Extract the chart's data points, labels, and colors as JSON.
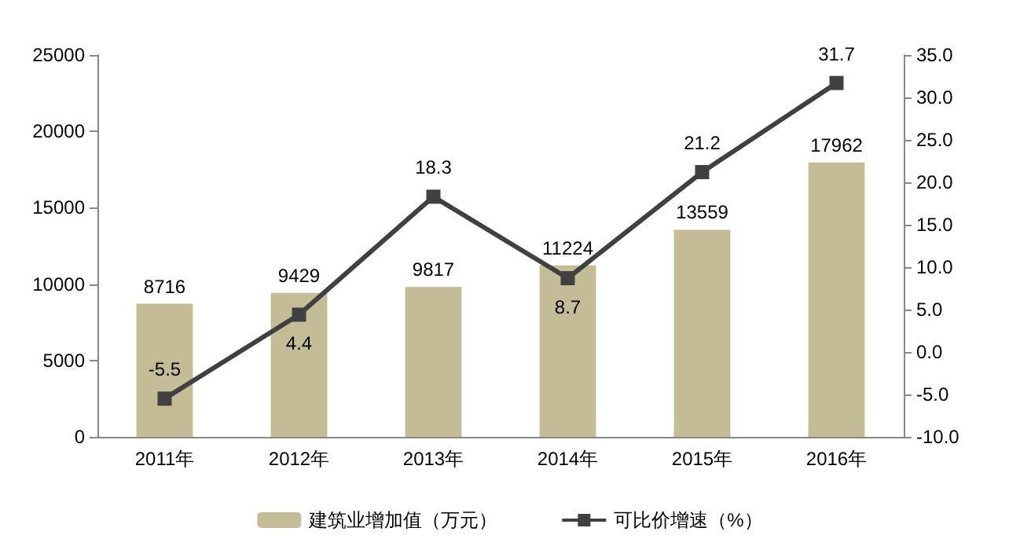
{
  "chart_data": {
    "type": "bar",
    "categories": [
      "2011年",
      "2012年",
      "2013年",
      "2014年",
      "2015年",
      "2016年"
    ],
    "series": [
      {
        "name": "建筑业增加值（万元）",
        "color": "#c4bc96",
        "values": [
          8716,
          9429,
          9817,
          11224,
          13559,
          17962
        ]
      },
      {
        "name": "可比价增速（%）",
        "type": "line",
        "axis": "y2",
        "color": "#404040",
        "values": [
          -5.5,
          4.4,
          18.3,
          8.7,
          21.2,
          31.7
        ]
      }
    ],
    "ylim": [
      0,
      25000
    ],
    "yticks": [
      0,
      5000,
      10000,
      15000,
      20000,
      25000
    ],
    "y2lim": [
      -10,
      35
    ],
    "y2ticks": [
      {
        "value": -10,
        "label": "-10.0"
      },
      {
        "value": -5,
        "label": "-5.0"
      },
      {
        "value": 0,
        "label": "0.0"
      },
      {
        "value": 5,
        "label": "5.0"
      },
      {
        "value": 10,
        "label": "10.0"
      },
      {
        "value": 15,
        "label": "15.0"
      },
      {
        "value": 20,
        "label": "20.0"
      },
      {
        "value": 25,
        "label": "25.0"
      },
      {
        "value": 30,
        "label": "30.0"
      },
      {
        "value": 35,
        "label": "35.0"
      }
    ],
    "data_labels": true,
    "legend": "bottom",
    "marker": "square",
    "line_style": "solid",
    "grid": false
  }
}
